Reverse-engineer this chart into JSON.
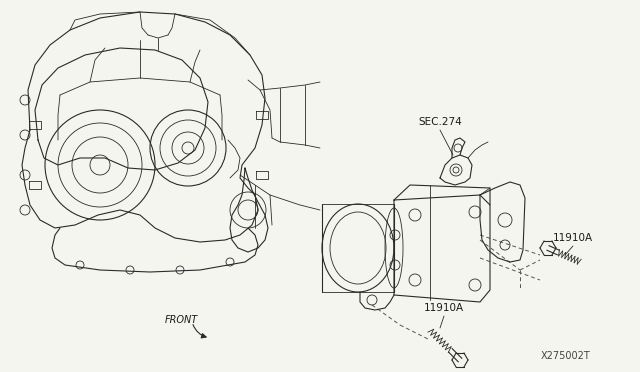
{
  "bg_color": "#f5f5f0",
  "line_color": "#2a2a2a",
  "label_color": "#1a1a1a",
  "figsize": [
    6.4,
    3.72
  ],
  "dpi": 100,
  "labels": {
    "sec274": "SEC.274",
    "bolt1": "11910A",
    "bolt2": "11910A",
    "front": "FRONT",
    "diagram_id": "X275002T"
  }
}
